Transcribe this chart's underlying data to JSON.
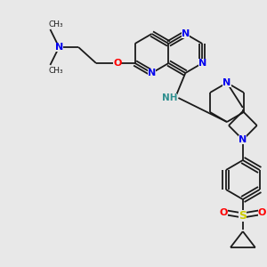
{
  "bg_color": "#e8e8e8",
  "fig_size": [
    3.0,
    3.0
  ],
  "dpi": 100,
  "atom_colors": {
    "N": "#0000ee",
    "O": "#ff0000",
    "S": "#cccc00",
    "C": "#1a1a1a",
    "NH": "#2f8f8f",
    "bond": "#1a1a1a"
  }
}
